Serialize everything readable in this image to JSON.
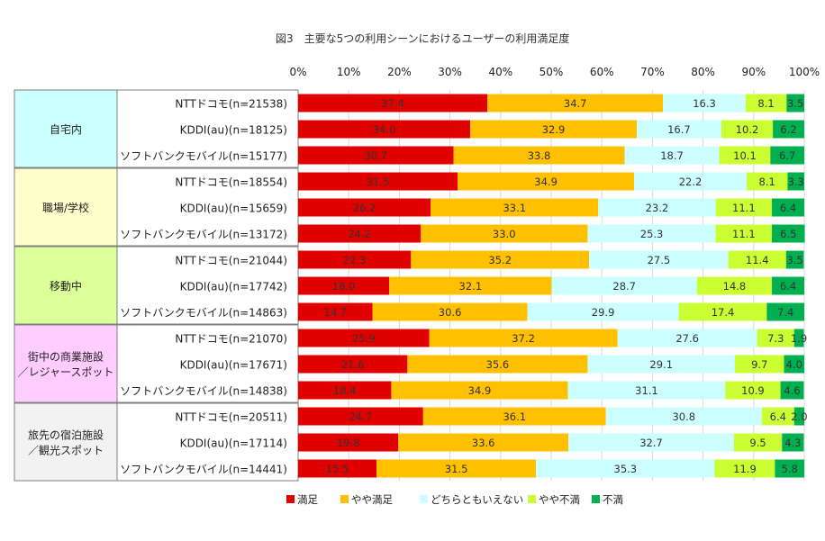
{
  "chart_data": {
    "type": "bar",
    "orientation": "horizontal",
    "stacked": true,
    "percent": true,
    "title": "図3　主要な5つの利用シーンにおけるユーザーの利用満足度",
    "x_ticks": [
      "0%",
      "10%",
      "20%",
      "30%",
      "40%",
      "50%",
      "60%",
      "70%",
      "80%",
      "90%",
      "100%"
    ],
    "xlim": [
      0,
      100
    ],
    "legend_position": "bottom",
    "series": [
      {
        "name": "満足",
        "color": "#e00000"
      },
      {
        "name": "やや満足",
        "color": "#ffc000"
      },
      {
        "name": "どちらともいえない",
        "color": "#ccffff"
      },
      {
        "name": "やや不満",
        "color": "#ccff33"
      },
      {
        "name": "不満",
        "color": "#00b050"
      }
    ],
    "groups": [
      {
        "label": [
          "自宅内"
        ],
        "color": "#ccffff",
        "rows": [
          {
            "label": "NTTドコモ(n=21538)",
            "values": [
              37.4,
              34.7,
              16.3,
              8.1,
              3.5
            ]
          },
          {
            "label": "KDDI(au)(n=18125)",
            "values": [
              34.0,
              32.9,
              16.7,
              10.2,
              6.2
            ]
          },
          {
            "label": "ソフトバンクモバイル(n=15177)",
            "values": [
              30.7,
              33.8,
              18.7,
              10.1,
              6.7
            ]
          }
        ]
      },
      {
        "label": [
          "職場/学校"
        ],
        "color": "#ffffcc",
        "rows": [
          {
            "label": "NTTドコモ(n=18554)",
            "values": [
              31.5,
              34.9,
              22.2,
              8.1,
              3.3
            ]
          },
          {
            "label": "KDDI(au)(n=15659)",
            "values": [
              26.2,
              33.1,
              23.2,
              11.1,
              6.4
            ]
          },
          {
            "label": "ソフトバンクモバイル(n=13172)",
            "values": [
              24.2,
              33.0,
              25.3,
              11.1,
              6.5
            ]
          }
        ]
      },
      {
        "label": [
          "移動中"
        ],
        "color": "#ddff99",
        "rows": [
          {
            "label": "NTTドコモ(n=21044)",
            "values": [
              22.3,
              35.2,
              27.5,
              11.4,
              3.5
            ]
          },
          {
            "label": "KDDI(au)(n=17742)",
            "values": [
              18.0,
              32.1,
              28.7,
              14.8,
              6.4
            ]
          },
          {
            "label": "ソフトバンクモバイル(n=14863)",
            "values": [
              14.7,
              30.6,
              29.9,
              17.4,
              7.4
            ]
          }
        ]
      },
      {
        "label": [
          "街中の商業施設",
          "／レジャースポット"
        ],
        "color": "#ffccff",
        "rows": [
          {
            "label": "NTTドコモ(n=21070)",
            "values": [
              25.9,
              37.2,
              27.6,
              7.3,
              1.9
            ]
          },
          {
            "label": "KDDI(au)(n=17671)",
            "values": [
              21.6,
              35.6,
              29.1,
              9.7,
              4.0
            ]
          },
          {
            "label": "ソフトバンクモバイル(n=14838)",
            "values": [
              18.4,
              34.9,
              31.1,
              10.9,
              4.6
            ]
          }
        ]
      },
      {
        "label": [
          "旅先の宿泊施設",
          "／観光スポット"
        ],
        "color": "#f2f2f2",
        "rows": [
          {
            "label": "NTTドコモ(n=20511)",
            "values": [
              24.7,
              36.1,
              30.8,
              6.4,
              2.0
            ]
          },
          {
            "label": "KDDI(au)(n=17114)",
            "values": [
              19.8,
              33.6,
              32.7,
              9.5,
              4.3
            ]
          },
          {
            "label": "ソフトバンクモバイル(n=14441)",
            "values": [
              15.5,
              31.5,
              35.3,
              11.9,
              5.8
            ]
          }
        ]
      }
    ]
  }
}
